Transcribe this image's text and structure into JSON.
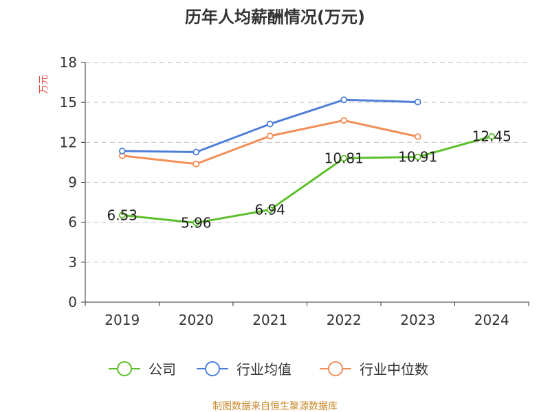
{
  "chart_data": {
    "type": "line",
    "title": "历年人均薪酬情况(万元)",
    "ylabel": "万元",
    "xlabel": "",
    "categories": [
      "2019",
      "2020",
      "2021",
      "2022",
      "2023",
      "2024"
    ],
    "ylim": [
      0,
      18
    ],
    "yticks": [
      0,
      3,
      6,
      9,
      12,
      15,
      18
    ],
    "grid": true,
    "legend_position": "bottom",
    "series": [
      {
        "name": "公司",
        "color": "#5cbf2a",
        "values": [
          6.53,
          5.96,
          6.94,
          10.81,
          10.91,
          12.45
        ],
        "labels": [
          "6.53",
          "5.96",
          "6.94",
          "10.81",
          "10.91",
          "12.45"
        ]
      },
      {
        "name": "行业均值",
        "color": "#4e7fd8",
        "values": [
          11.35,
          11.27,
          13.38,
          15.2,
          15.03,
          null
        ]
      },
      {
        "name": "行业中位数",
        "color": "#f28e57",
        "values": [
          11.0,
          10.38,
          12.48,
          13.65,
          12.43,
          null
        ]
      }
    ]
  },
  "source": "制图数据来自恒生聚源数据库"
}
